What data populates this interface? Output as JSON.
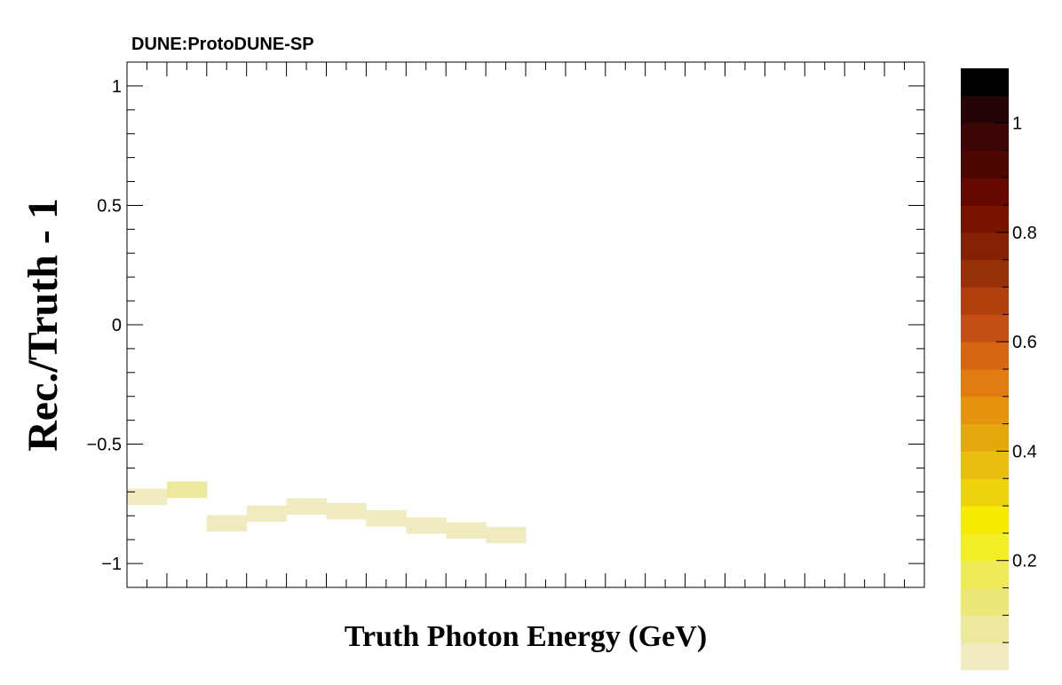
{
  "header": {
    "experiment_label": "DUNE:ProtoDUNE-SP"
  },
  "chart_data": {
    "type": "heatmap",
    "xlabel": "Truth Photon Energy (GeV)",
    "ylabel": "Rec./Truth - 1",
    "x_bins": 20,
    "ylim": [
      -1.1,
      1.1
    ],
    "y_bins": 33,
    "y_ticks": [
      {
        "value": 1,
        "label": "1"
      },
      {
        "value": 0.5,
        "label": "0.5"
      },
      {
        "value": 0,
        "label": "0"
      },
      {
        "value": -0.5,
        "label": "−0.5"
      },
      {
        "value": -1,
        "label": "−1"
      }
    ],
    "zlim": [
      0,
      1.1
    ],
    "z_ticks": [
      {
        "value": 1.0,
        "label": "1"
      },
      {
        "value": 0.8,
        "label": "0.8"
      },
      {
        "value": 0.6,
        "label": "0.6"
      },
      {
        "value": 0.4,
        "label": "0.4"
      },
      {
        "value": 0.2,
        "label": "0.2"
      }
    ],
    "palette": [
      "#f0ecc0",
      "#ede99c",
      "#ece878",
      "#eeea5a",
      "#f3ee28",
      "#f5ea00",
      "#edd20c",
      "#e9be10",
      "#e5a910",
      "#e3930e",
      "#e07c12",
      "#d66514",
      "#c44f14",
      "#b0410e",
      "#983008",
      "#862204",
      "#761400",
      "#640800",
      "#4e0600",
      "#3c0604",
      "#240404",
      "#000000"
    ],
    "cells": [
      [
        0,
        [
          [
            -0.72,
            0.04
          ]
        ]
      ],
      [
        1,
        [
          [
            -0.69,
            0.06
          ]
        ]
      ],
      [
        2,
        [
          [
            -0.83,
            0.04
          ]
        ]
      ],
      [
        3,
        [
          [
            -0.79,
            0.02
          ]
        ]
      ],
      [
        4,
        [
          [
            -0.76,
            0.01
          ]
        ]
      ],
      [
        5,
        [
          [
            -0.78,
            0.02
          ]
        ]
      ],
      [
        6,
        [
          [
            -0.81,
            0.01
          ]
        ]
      ],
      [
        7,
        [
          [
            -0.84,
            0.01
          ]
        ]
      ],
      [
        8,
        [
          [
            -0.86,
            0.01
          ]
        ]
      ],
      [
        9,
        [
          [
            -0.88,
            0.01
          ]
        ]
      ]
    ]
  }
}
